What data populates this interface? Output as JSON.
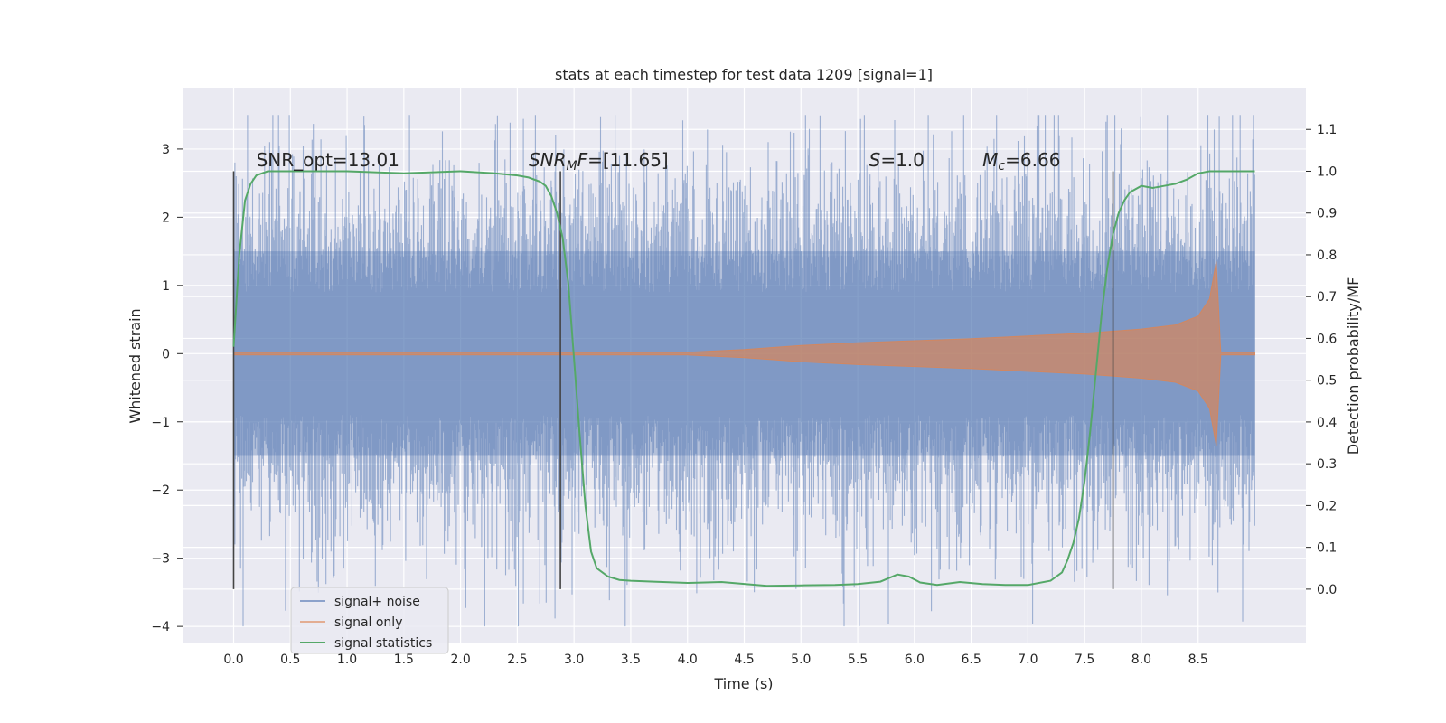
{
  "chart_data": {
    "type": "line",
    "title": "stats at each timestep for test data 1209 [signal=1]",
    "xlabel": "Time (s)",
    "ylabel": "Whitened strain",
    "y2label": "Detection probability/MF",
    "xlim": [
      -0.45,
      9.45
    ],
    "ylim": [
      -4.25,
      3.9
    ],
    "y2lim": [
      -0.13,
      1.2
    ],
    "xticks": [
      "0.0",
      "0.5",
      "1.0",
      "1.5",
      "2.0",
      "2.5",
      "3.0",
      "3.5",
      "4.0",
      "4.5",
      "5.0",
      "5.5",
      "6.0",
      "6.5",
      "7.0",
      "7.5",
      "8.0",
      "8.5"
    ],
    "yticks": [
      "3",
      "2",
      "1",
      "0",
      "−1",
      "−2",
      "−3",
      "−4"
    ],
    "y2ticks": [
      "1.1",
      "1.0",
      "0.9",
      "0.8",
      "0.7",
      "0.6",
      "0.5",
      "0.4",
      "0.3",
      "0.2",
      "0.1",
      "0.0"
    ],
    "grid": true,
    "legend_position": "lower-left",
    "annotations": [
      {
        "text": "SNR_opt=13.01",
        "x": 0.2
      },
      {
        "text": "SNR_MF=[11.65]",
        "x": 2.6
      },
      {
        "text": "S=1.0",
        "x": 5.6
      },
      {
        "text": "M_c=6.66",
        "x": 6.6
      }
    ],
    "vertical_lines_x": [
      0.0,
      2.88,
      7.75
    ],
    "series": [
      {
        "name": "signal+ noise",
        "color": "#4c72b0",
        "axis": "left",
        "x_range": [
          0.0,
          9.0
        ],
        "envelope_note_free": true,
        "typical_band": [
          -1.5,
          1.5
        ],
        "extreme_low": -4.0,
        "extreme_high": 3.5
      },
      {
        "name": "signal only",
        "color": "#dd8452",
        "axis": "left",
        "x": [
          0.0,
          4.0,
          4.5,
          5.0,
          5.5,
          6.0,
          6.5,
          7.0,
          7.5,
          8.0,
          8.3,
          8.5,
          8.6,
          8.66,
          8.7,
          9.0
        ],
        "amplitude": [
          0.02,
          0.02,
          0.06,
          0.12,
          0.16,
          0.19,
          0.22,
          0.26,
          0.3,
          0.36,
          0.42,
          0.55,
          0.8,
          1.35,
          0.02,
          0.02
        ]
      },
      {
        "name": "signal statistics",
        "color": "#55a868",
        "axis": "right",
        "x": [
          0.0,
          0.05,
          0.1,
          0.15,
          0.2,
          0.3,
          0.5,
          1.0,
          1.5,
          2.0,
          2.3,
          2.5,
          2.6,
          2.7,
          2.75,
          2.8,
          2.85,
          2.9,
          2.95,
          3.0,
          3.05,
          3.1,
          3.15,
          3.2,
          3.3,
          3.4,
          3.5,
          3.7,
          4.0,
          4.3,
          4.7,
          5.0,
          5.3,
          5.5,
          5.7,
          5.85,
          5.95,
          6.05,
          6.2,
          6.4,
          6.6,
          6.8,
          7.0,
          7.2,
          7.3,
          7.35,
          7.4,
          7.45,
          7.5,
          7.55,
          7.6,
          7.65,
          7.7,
          7.75,
          7.8,
          7.85,
          7.9,
          8.0,
          8.1,
          8.2,
          8.3,
          8.4,
          8.5,
          8.6,
          8.8,
          9.0
        ],
        "y": [
          0.58,
          0.8,
          0.93,
          0.97,
          0.99,
          1.0,
          1.0,
          1.0,
          0.995,
          1.0,
          0.995,
          0.99,
          0.985,
          0.975,
          0.965,
          0.94,
          0.9,
          0.84,
          0.73,
          0.55,
          0.37,
          0.2,
          0.09,
          0.05,
          0.03,
          0.022,
          0.02,
          0.018,
          0.015,
          0.017,
          0.008,
          0.009,
          0.01,
          0.012,
          0.018,
          0.035,
          0.03,
          0.016,
          0.01,
          0.017,
          0.012,
          0.01,
          0.01,
          0.02,
          0.04,
          0.07,
          0.11,
          0.17,
          0.26,
          0.38,
          0.52,
          0.66,
          0.77,
          0.85,
          0.9,
          0.93,
          0.95,
          0.965,
          0.96,
          0.965,
          0.97,
          0.98,
          0.995,
          1.0,
          1.0,
          1.0
        ]
      }
    ]
  }
}
